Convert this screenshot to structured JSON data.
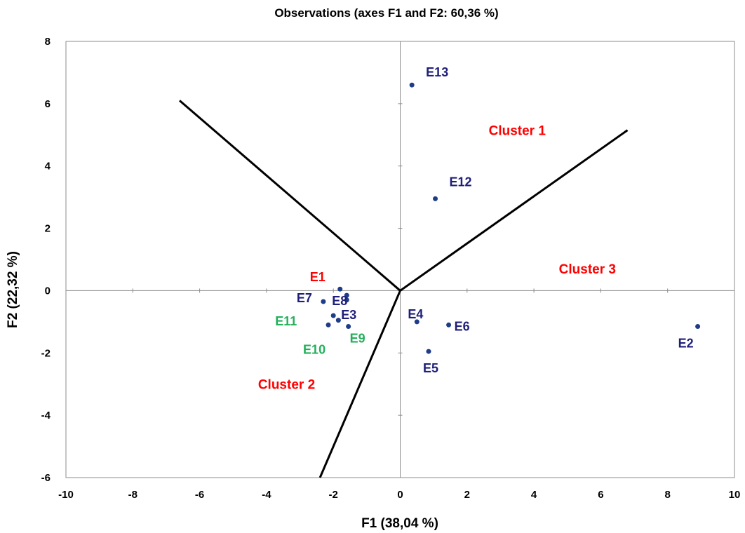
{
  "chart_data": {
    "type": "scatter",
    "title": "Observations (axes F1 and F2: 60,36 %)",
    "xlabel": "F1 (38,04 %)",
    "ylabel": "F2 (22,32 %)",
    "xlim": [
      -10,
      10
    ],
    "ylim": [
      -6,
      8
    ],
    "xticks": [
      "-10",
      "-8",
      "-6",
      "-4",
      "-2",
      "0",
      "2",
      "4",
      "6",
      "8",
      "10"
    ],
    "yticks": [
      "-6",
      "-4",
      "-2",
      "0",
      "2",
      "4",
      "6",
      "8"
    ],
    "xtick_values": [
      -10,
      -8,
      -6,
      -4,
      -2,
      0,
      2,
      4,
      6,
      8,
      10
    ],
    "ytick_values": [
      -6,
      -4,
      -2,
      0,
      2,
      4,
      6,
      8
    ],
    "grid": false,
    "point_color": "#1f3c88",
    "points": [
      {
        "label": "E13",
        "x": 0.35,
        "y": 6.6,
        "color": "#1f1f7a"
      },
      {
        "label": "E12",
        "x": 1.05,
        "y": 2.95,
        "color": "#1f1f7a"
      },
      {
        "label": "E1",
        "x": -1.8,
        "y": 0.05,
        "color": "#ff0000"
      },
      {
        "label": "E7",
        "x": -2.3,
        "y": -0.35,
        "color": "#1f1f7a"
      },
      {
        "label": "E8",
        "x": -1.6,
        "y": -0.15,
        "color": "#1f1f7a"
      },
      {
        "label": "E3",
        "x": -1.6,
        "y": -0.3,
        "color": "#1f1f7a"
      },
      {
        "label": "E11",
        "x": -2.0,
        "y": -0.8,
        "color": "#22b05a"
      },
      {
        "label": "E10",
        "x": -2.15,
        "y": -1.1,
        "color": "#22b05a"
      },
      {
        "label": "E9",
        "x": -1.55,
        "y": -1.15,
        "color": "#22b05a"
      },
      {
        "label": "E4",
        "x": 0.5,
        "y": -1.0,
        "color": "#1f1f7a"
      },
      {
        "label": "E6",
        "x": 1.45,
        "y": -1.1,
        "color": "#1f1f7a"
      },
      {
        "label": "E5",
        "x": 0.85,
        "y": -1.95,
        "color": "#1f1f7a"
      },
      {
        "label": "E2",
        "x": 8.9,
        "y": -1.15,
        "color": "#1f1f7a"
      }
    ],
    "extra_points": [
      {
        "x": -1.85,
        "y": -0.95
      }
    ],
    "separator_lines": [
      {
        "from": [
          0,
          0
        ],
        "to": [
          -6.6,
          6.1
        ]
      },
      {
        "from": [
          0,
          0
        ],
        "to": [
          6.8,
          5.15
        ]
      },
      {
        "from": [
          0,
          0
        ],
        "to": [
          -2.4,
          -6.0
        ]
      }
    ],
    "annotations": [
      {
        "text": "Cluster 1",
        "x": 3.5,
        "y": 5.0,
        "color": "#ff0000"
      },
      {
        "text": "Cluster 2",
        "x": -3.4,
        "y": -3.15,
        "color": "#ff0000"
      },
      {
        "text": "Cluster 3",
        "x": 5.6,
        "y": 0.55,
        "color": "#ff0000"
      }
    ]
  }
}
